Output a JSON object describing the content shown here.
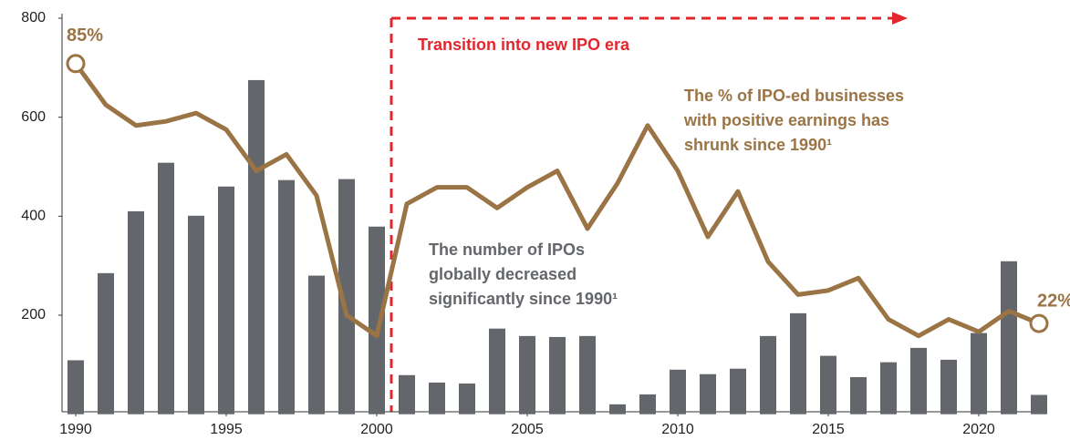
{
  "chart_data": {
    "type": "bar",
    "x": [
      1990,
      1991,
      1992,
      1993,
      1994,
      1995,
      1996,
      1997,
      1998,
      1999,
      2000,
      2001,
      2002,
      2003,
      2004,
      2005,
      2006,
      2007,
      2008,
      2009,
      2010,
      2011,
      2012,
      2013,
      2014,
      2015,
      2016,
      2017,
      2018,
      2019,
      2020,
      2021,
      2022
    ],
    "xlim": [
      1989.5,
      2022.5
    ],
    "xticks": [
      1990,
      1995,
      2000,
      2005,
      2010,
      2015,
      2020
    ],
    "ylim": [
      0,
      800
    ],
    "yticks": [
      200,
      400,
      600,
      800
    ],
    "y2lim": [
      0,
      96
    ],
    "series": [
      {
        "name": "The number of IPOs",
        "type": "bar",
        "color": "#63666a",
        "values": [
          109,
          285,
          410,
          508,
          401,
          460,
          675,
          473,
          280,
          475,
          379,
          79,
          64,
          62,
          173,
          158,
          156,
          158,
          20,
          40,
          90,
          81,
          92,
          158,
          204,
          118,
          75,
          105,
          134,
          110,
          164,
          309,
          39
        ]
      },
      {
        "name": "% of IPO-ed businesses with positive earnings",
        "type": "line",
        "axis": "y2",
        "color": "#9b7446",
        "values": [
          85,
          75,
          70,
          71,
          73,
          69,
          59,
          63,
          53,
          24,
          19,
          51,
          55,
          55,
          50,
          55,
          59,
          45,
          56,
          70,
          59,
          43,
          54,
          37,
          29,
          30,
          33,
          23,
          19,
          23,
          20,
          25,
          22
        ],
        "value_labels": [
          "85%",
          null,
          null,
          null,
          null,
          null,
          null,
          null,
          null,
          null,
          null,
          null,
          null,
          null,
          null,
          null,
          null,
          null,
          null,
          null,
          null,
          null,
          null,
          null,
          null,
          null,
          null,
          null,
          null,
          null,
          null,
          null,
          "22%"
        ]
      }
    ],
    "annotations": [
      {
        "lines": [
          "Transition into new IPO era"
        ],
        "color": "#e3262d"
      },
      {
        "lines": [
          "The % of IPO-ed businesses",
          "with positive earnings has",
          "shrunk since 1990¹"
        ],
        "color": "#9b7446"
      },
      {
        "lines": [
          "The number of IPOs",
          "globally decreased",
          "significantly since 1990¹"
        ],
        "color": "#63666a"
      }
    ]
  }
}
